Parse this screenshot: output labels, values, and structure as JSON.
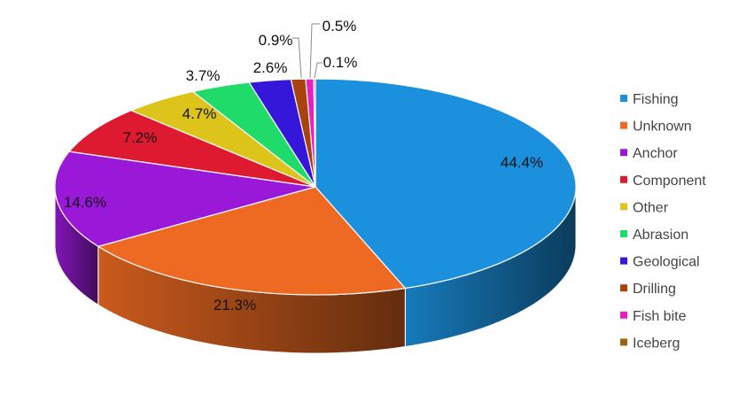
{
  "chart_data": {
    "type": "pie",
    "style": "3d",
    "legend_position": "right",
    "categories": [
      "Fishing",
      "Unknown",
      "Anchor",
      "Component",
      "Other",
      "Abrasion",
      "Geological",
      "Drilling",
      "Fish bite",
      "Iceberg"
    ],
    "values": [
      44.4,
      21.3,
      14.6,
      7.2,
      4.7,
      3.7,
      2.6,
      0.9,
      0.5,
      0.1
    ],
    "labels": [
      "44.4%",
      "21.3%",
      "14.6%",
      "7.2%",
      "4.7%",
      "3.7%",
      "2.6%",
      "0.9%",
      "0.5%",
      "0.1%"
    ],
    "colors": [
      "#1b90dc",
      "#ee6a22",
      "#9a19d8",
      "#dd1a30",
      "#dcc41b",
      "#1fdc6a",
      "#3417d8",
      "#a8430f",
      "#e621c2",
      "#9c6510"
    ]
  }
}
